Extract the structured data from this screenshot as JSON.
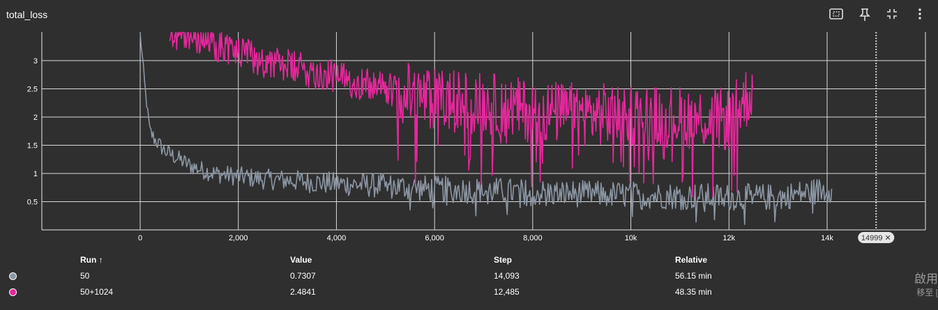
{
  "card": {
    "title": "total_loss"
  },
  "toolbar": {
    "fit_icon": "fit-domain-icon",
    "pin_icon": "pin-icon",
    "collapse_icon": "collapse-icon",
    "more_icon": "more-vert-icon"
  },
  "chart_data": {
    "type": "line",
    "title": "",
    "xlabel": "",
    "ylabel": "",
    "xlim": [
      -200,
      15500
    ],
    "ylim": [
      0,
      3.5
    ],
    "x_ticks": [
      0,
      2000,
      4000,
      6000,
      8000,
      10000,
      12000,
      14000
    ],
    "x_tick_labels": [
      "0",
      "2,000",
      "4,000",
      "6,000",
      "8,000",
      "10k",
      "12k",
      "14k"
    ],
    "y_ticks": [
      0.5,
      1,
      1.5,
      2,
      2.5,
      3
    ],
    "y_tick_labels": [
      "0.5",
      "1",
      "1.5",
      "2",
      "2.5",
      "3"
    ],
    "grid": true,
    "marker_line": {
      "step": 14999,
      "label": "14999 ✕"
    },
    "series": [
      {
        "name": "50",
        "color": "#8c96a3",
        "x": [
          0,
          50,
          100,
          150,
          200,
          300,
          400,
          500,
          600,
          800,
          1000,
          1200,
          1500,
          2000,
          2500,
          3000,
          4000,
          5000,
          6000,
          7000,
          8000,
          9000,
          10000,
          11000,
          12000,
          13000,
          14093
        ],
        "y": [
          3.5,
          3.0,
          2.5,
          2.1,
          1.75,
          1.6,
          1.5,
          1.4,
          1.35,
          1.25,
          1.15,
          1.08,
          1.0,
          0.95,
          0.9,
          0.88,
          0.82,
          0.78,
          0.72,
          0.7,
          0.66,
          0.64,
          0.62,
          0.6,
          0.58,
          0.58,
          0.7307
        ]
      },
      {
        "name": "50+1024",
        "color": "#e5279b",
        "x": [
          600,
          1000,
          1500,
          2000,
          2500,
          3000,
          3500,
          4000,
          4500,
          5000,
          5500,
          6000,
          7000,
          8000,
          9000,
          10000,
          11000,
          12000,
          12485
        ],
        "y": [
          3.5,
          3.45,
          3.3,
          3.15,
          3.0,
          2.9,
          2.8,
          2.7,
          2.6,
          2.5,
          2.4,
          2.3,
          2.25,
          2.1,
          2.05,
          2.05,
          2.0,
          1.95,
          2.4841
        ]
      }
    ]
  },
  "table": {
    "headers": {
      "run": "Run ↑",
      "value": "Value",
      "step": "Step",
      "relative": "Relative"
    },
    "rows": [
      {
        "run": "50",
        "value": "0.7307",
        "step": "14,093",
        "relative": "56.15 min",
        "color": "#8c96a3"
      },
      {
        "run": "50+1024",
        "value": "2.4841",
        "step": "12,485",
        "relative": "48.35 min",
        "color": "#e5279b"
      }
    ]
  },
  "watermark": {
    "line1": "啟用",
    "line2": "移至 ["
  }
}
